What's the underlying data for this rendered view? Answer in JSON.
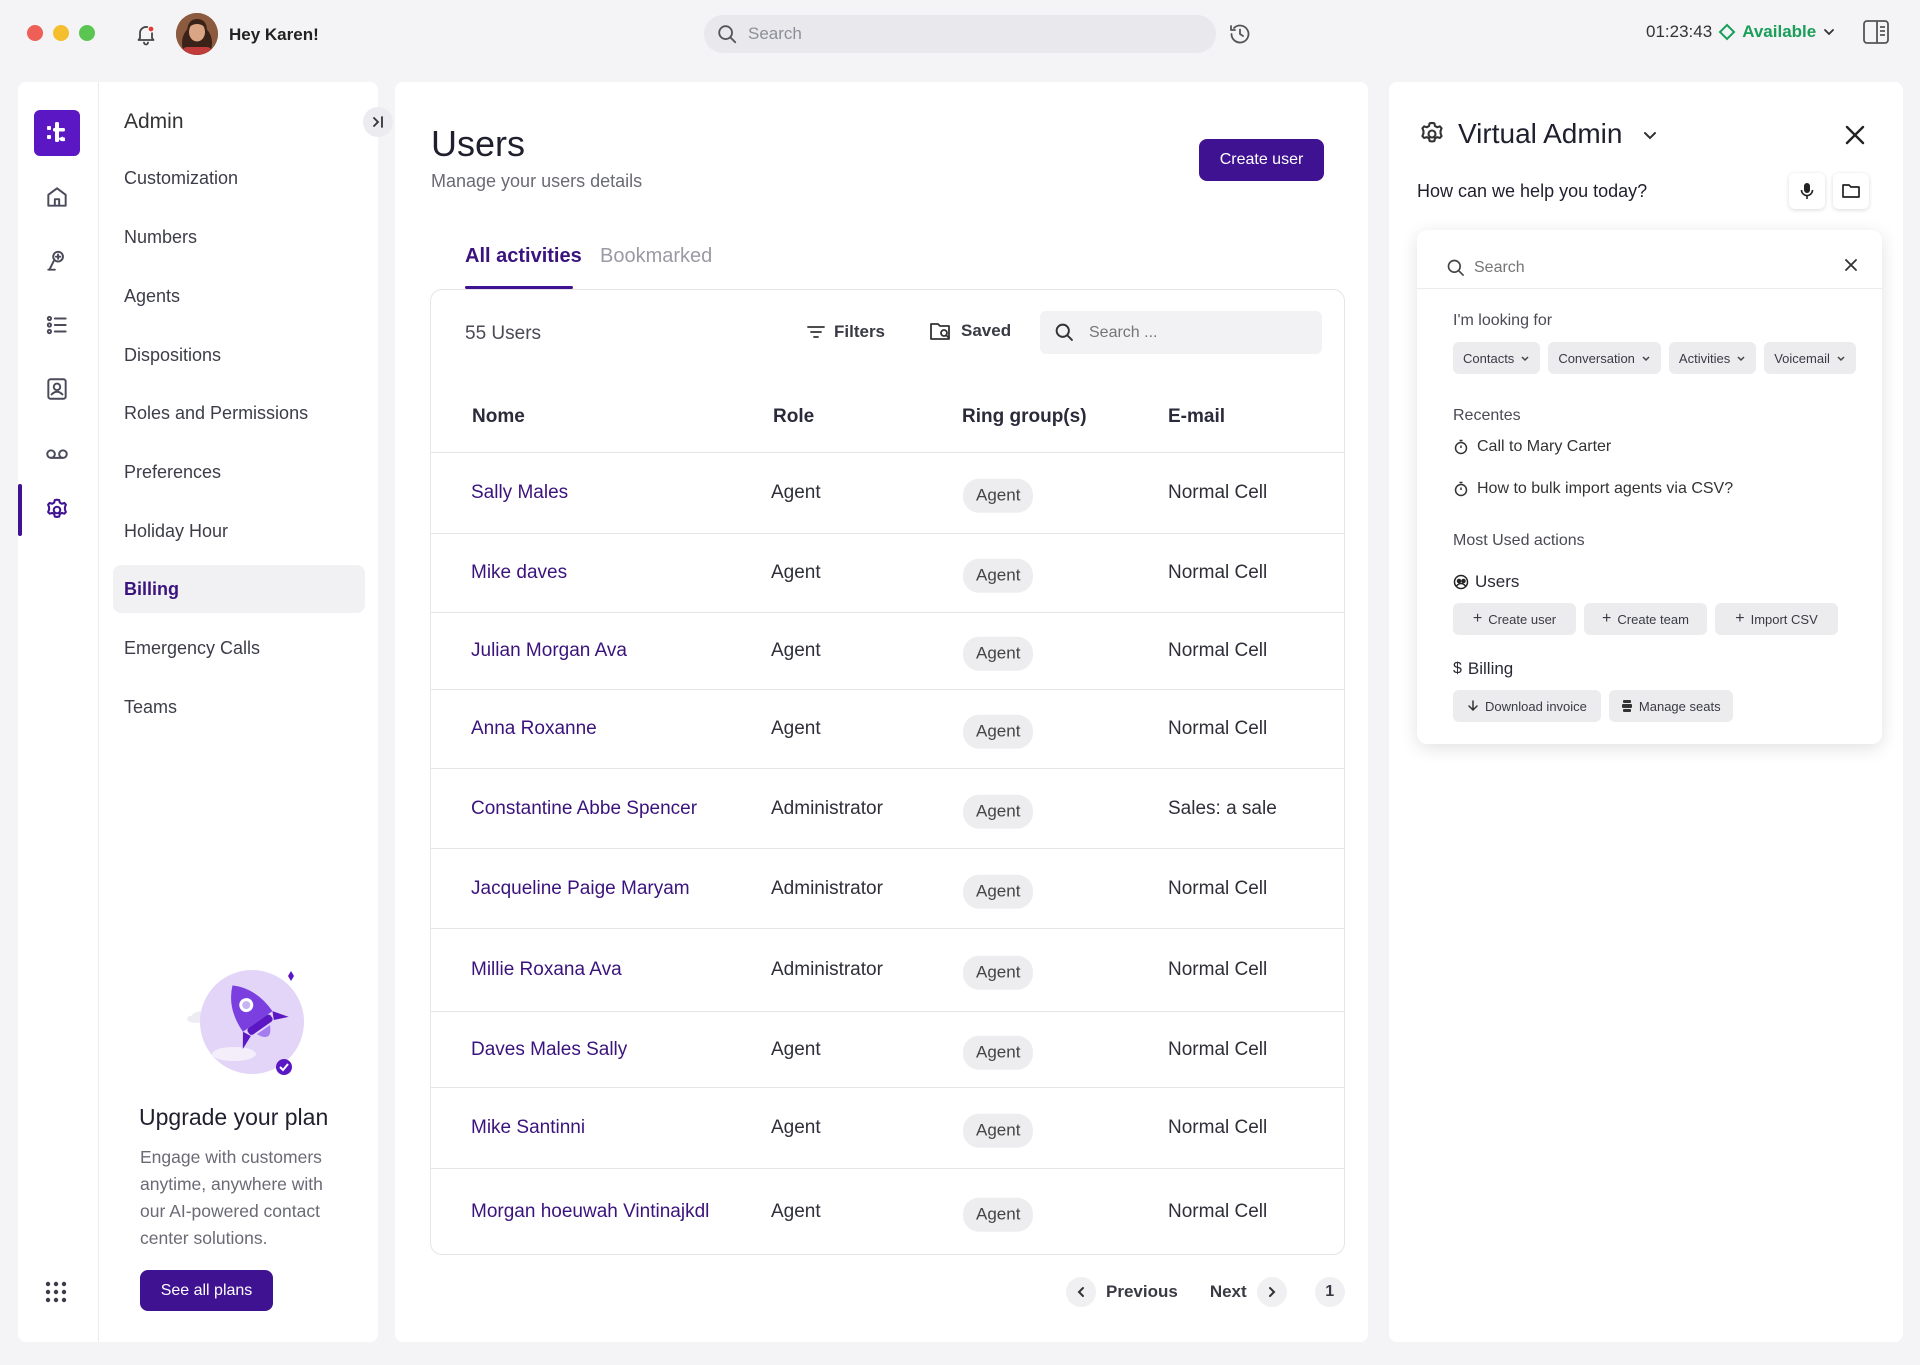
{
  "window": {
    "greeting": "Hey Karen!",
    "search_placeholder": "Search",
    "timer": "01:23:43",
    "status": "Available"
  },
  "colors": {
    "brand": "#3e1290",
    "link": "#3b137d",
    "status_green": "#1a9e5a"
  },
  "sidebar": {
    "title": "Admin",
    "items": [
      {
        "label": "Customization"
      },
      {
        "label": "Numbers"
      },
      {
        "label": "Agents"
      },
      {
        "label": "Dispositions"
      },
      {
        "label": "Roles and Permissions"
      },
      {
        "label": "Preferences"
      },
      {
        "label": "Holiday Hour"
      },
      {
        "label": "Billing"
      },
      {
        "label": "Emergency Calls"
      },
      {
        "label": "Teams"
      }
    ],
    "active_item": "Billing",
    "upgrade": {
      "title": "Upgrade your plan",
      "body": "Engage with customers anytime, anywhere with our AI-powered contact center solutions.",
      "button": "See all plans"
    }
  },
  "main": {
    "title": "Users",
    "subtitle": "Manage your users details",
    "create_button": "Create user",
    "tabs": [
      {
        "label": "All activities"
      },
      {
        "label": "Bookmarked"
      }
    ],
    "active_tab": "All activities",
    "count": "55 Users",
    "filters_label": "Filters",
    "saved_label": "Saved",
    "table_search_placeholder": "Search ...",
    "columns": [
      "Nome",
      "Role",
      "Ring group(s)",
      "E-mail"
    ],
    "rows": [
      {
        "name": "Sally Males",
        "role": "Agent",
        "ring_group": "Agent",
        "email": "Normal Cell"
      },
      {
        "name": "Mike daves",
        "role": "Agent",
        "ring_group": "Agent",
        "email": "Normal Cell"
      },
      {
        "name": "Julian Morgan Ava",
        "role": "Agent",
        "ring_group": "Agent",
        "email": "Normal Cell"
      },
      {
        "name": "Anna Roxanne",
        "role": "Agent",
        "ring_group": "Agent",
        "email": "Normal Cell"
      },
      {
        "name": "Constantine Abbe Spencer",
        "role": "Administrator",
        "ring_group": "Agent",
        "email": "Sales: a sale"
      },
      {
        "name": "Jacqueline Paige Maryam",
        "role": "Administrator",
        "ring_group": "Agent",
        "email": "Normal Cell"
      },
      {
        "name": "Millie Roxana Ava",
        "role": "Administrator",
        "ring_group": "Agent",
        "email": "Normal Cell"
      },
      {
        "name": "Daves Males Sally",
        "role": "Agent",
        "ring_group": "Agent",
        "email": "Normal Cell"
      },
      {
        "name": "Mike Santinni",
        "role": "Agent",
        "ring_group": "Agent",
        "email": "Normal Cell"
      },
      {
        "name": "Morgan hoeuwah Vintinajkdl",
        "role": "Agent",
        "ring_group": "Agent",
        "email": "Normal Cell"
      }
    ],
    "pagination": {
      "previous": "Previous",
      "next": "Next",
      "page": "1"
    }
  },
  "virtual_admin": {
    "title": "Virtual Admin",
    "prompt": "How can we help you today?",
    "search_placeholder": "Search",
    "looking_for_label": "I'm looking for",
    "looking_for_chips": [
      {
        "label": "Contacts"
      },
      {
        "label": "Conversation"
      },
      {
        "label": "Activities"
      },
      {
        "label": "Voicemail"
      }
    ],
    "recent_label": "Recentes",
    "recent_items": [
      {
        "label": "Call to Mary Carter"
      },
      {
        "label": "How to bulk import agents via CSV?"
      }
    ],
    "most_used_label": "Most Used actions",
    "users_group": {
      "label": "Users",
      "actions": [
        {
          "label": "Create user"
        },
        {
          "label": "Create team"
        },
        {
          "label": "Import CSV"
        }
      ]
    },
    "billing_group": {
      "label": "Billing",
      "actions": [
        {
          "label": "Download invoice"
        },
        {
          "label": "Manage seats"
        }
      ]
    }
  }
}
